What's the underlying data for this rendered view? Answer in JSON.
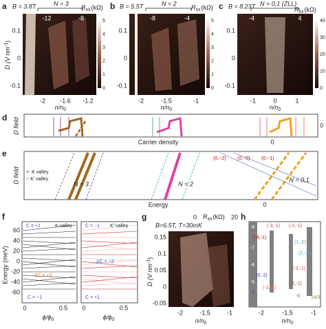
{
  "a": {
    "label": "a",
    "field": "B = 3.8T",
    "filling": "N = 3",
    "rxx": "R",
    "rxx_sub": "xx",
    "unit": "(kΩ)",
    "colorbar_ticks": [
      "5",
      "4",
      "3",
      "2",
      "1",
      "0"
    ],
    "top_ticks": [
      "-12",
      "-8"
    ],
    "y_label": "D (V nm",
    "y_label_sup": "-1",
    "y_label_end": ")",
    "y_ticks": [
      "0.1",
      "0",
      "-0.1"
    ],
    "x_ticks": [
      "-2",
      "-1.6",
      "-1.2"
    ],
    "x_label": "n/n",
    "x_label_sub": "0"
  },
  "b": {
    "label": "b",
    "field": "B = 5.5T",
    "filling": "N = 2",
    "rxx": "R",
    "rxx_sub": "xx",
    "unit": "(kΩ)",
    "colorbar_ticks": [
      "5",
      "4",
      "3",
      "2",
      "1",
      "0"
    ],
    "top_ticks": [
      "-8",
      "-4"
    ],
    "y_ticks": [
      "0.1",
      "0",
      "-0.1"
    ],
    "x_ticks": [
      "-2",
      "-1.5",
      "-1"
    ],
    "x_label": "n/n",
    "x_label_sub": "0"
  },
  "c": {
    "label": "c",
    "field": "B = 8.23T",
    "filling": "N = 0,1 (ZLL)",
    "rxx": "R",
    "rxx_sub": "xx",
    "unit": "(kΩ)",
    "colorbar_ticks": [
      "40",
      "30",
      "20",
      "10",
      "0"
    ],
    "top_ticks": [
      "-4",
      "4"
    ],
    "y_ticks": [
      "0.1",
      "0",
      "-0.1"
    ],
    "x_ticks": [
      "-1",
      "0",
      "1"
    ],
    "x_label": "n/n",
    "x_label_sub": "0"
  },
  "d": {
    "label": "d",
    "y_label": "D field",
    "x_label": "Carrier density",
    "zero": "0",
    "right_tick": "0"
  },
  "e": {
    "label": "e",
    "y_label": "D field",
    "legend": [
      "+: K valley",
      "-: K' valley"
    ],
    "fillings": [
      "N = 3",
      "N = 2",
      "N = 0,1"
    ],
    "x_label": "Energy",
    "zero": "0",
    "orbit_labels": [
      "(0,−2)",
      "(0,−2)",
      "(0,−1)"
    ]
  },
  "f": {
    "label": "f",
    "y_label": "Energy (meV)",
    "y_ticks": [
      "60",
      "40",
      "20",
      "0",
      "-20",
      "-40",
      "-60"
    ],
    "x_ticks": [
      "0",
      "0.5",
      "0",
      "0.5"
    ],
    "x_label": "ϕ/ϕ",
    "x_label_sub": "0",
    "annotations": [
      "C = +1",
      "K-valley",
      "C = −1",
      "K′-valley",
      "ΔC = +2",
      "ΔC = −2",
      "C = −1",
      "C = +1"
    ]
  },
  "g": {
    "label": "g",
    "title": "B=6.5T, T=30mK",
    "rxx": "R",
    "rxx_sub": "xx",
    "unit": "(kΩ)",
    "colorbar_ticks": [
      "0",
      "20"
    ],
    "y_label": "D (V nm",
    "y_label_sup": "-1",
    "y_label_end": ")",
    "y_ticks": [
      "0.15",
      "0.1",
      "0.05",
      "0",
      "-0.05"
    ],
    "x_ticks": [
      "-2",
      "-1.5",
      "-1"
    ],
    "x_label": "n/n",
    "x_label_sub": "0"
  },
  "h": {
    "label": "h",
    "x_ticks": [
      "-2",
      "-1.5",
      "-1"
    ],
    "x_label": "n/n",
    "x_label_sub": "0",
    "labels": [
      {
        "text": "-8",
        "color": "#ffffff"
      },
      {
        "text": "(-3,-1)",
        "color": "#c0504d"
      },
      {
        "text": "(-2,-1)",
        "color": "#c0504d"
      },
      {
        "text": "(-4,-1)",
        "color": "#c00000"
      },
      {
        "text": "-7",
        "color": "#ffffff"
      },
      {
        "text": "(1,-2)",
        "color": "#4bacc6"
      },
      {
        "text": "(2,-3)",
        "color": "#4bacc6"
      },
      {
        "text": "-6",
        "color": "#ffffff"
      },
      {
        "text": "(0,-2)",
        "color": "#2040c0"
      },
      {
        "text": "(-2,-1)",
        "color": "#c0504d"
      },
      {
        "text": "-5",
        "color": "#ffffff"
      },
      {
        "text": "(-3,-1)",
        "color": "#e07020"
      },
      {
        "text": "-7",
        "color": "#2040c0"
      },
      {
        "text": "(-1,-1)",
        "color": "#c0504d"
      },
      {
        "text": "-6",
        "color": "#c0504d"
      },
      {
        "text": "14/3",
        "color": "#70a030"
      }
    ]
  }
}
